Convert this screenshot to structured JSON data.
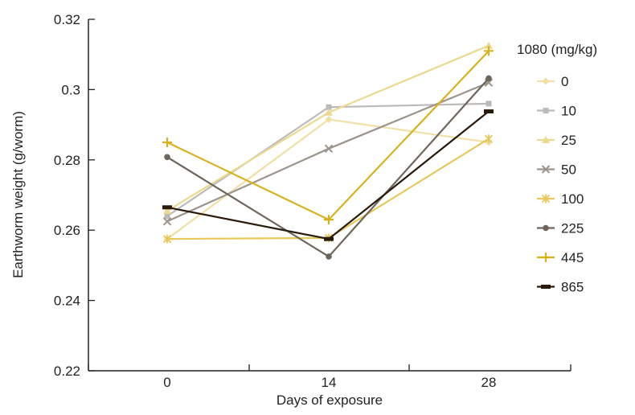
{
  "chart_data": {
    "type": "line",
    "xlabel": "Days of exposure",
    "ylabel": "Earthworm weight (g/worm)",
    "x": [
      0,
      14,
      28
    ],
    "x_ticks": [
      "0",
      "14",
      "28"
    ],
    "ylim": [
      0.22,
      0.32
    ],
    "y_ticks": [
      "0.22",
      "0.24",
      "0.26",
      "0.28",
      "0.3",
      "0.32"
    ],
    "grid": false,
    "legend_title": "1080 (mg/kg)",
    "legend_position": "right",
    "series": [
      {
        "name": "0",
        "values": [
          0.2575,
          0.2915,
          0.285
        ],
        "color": "#f2dfa6",
        "marker": "diamond"
      },
      {
        "name": "10",
        "values": [
          0.264,
          0.295,
          0.296
        ],
        "color": "#bdbbb9",
        "marker": "square"
      },
      {
        "name": "25",
        "values": [
          0.2655,
          0.2935,
          0.3125
        ],
        "color": "#ecd98e",
        "marker": "triangle"
      },
      {
        "name": "50",
        "values": [
          0.2625,
          0.2832,
          0.302
        ],
        "color": "#9c948b",
        "marker": "x"
      },
      {
        "name": "100",
        "values": [
          0.2575,
          0.2578,
          0.286
        ],
        "color": "#e9c85a",
        "marker": "asterisk"
      },
      {
        "name": "225",
        "values": [
          0.2808,
          0.2525,
          0.3032
        ],
        "color": "#6e655c",
        "marker": "circle"
      },
      {
        "name": "445",
        "values": [
          0.285,
          0.263,
          0.311
        ],
        "color": "#d8b21c",
        "marker": "plus"
      },
      {
        "name": "865",
        "values": [
          0.2665,
          0.2575,
          0.2938
        ],
        "color": "#2a1a0c",
        "marker": "dash"
      }
    ]
  }
}
